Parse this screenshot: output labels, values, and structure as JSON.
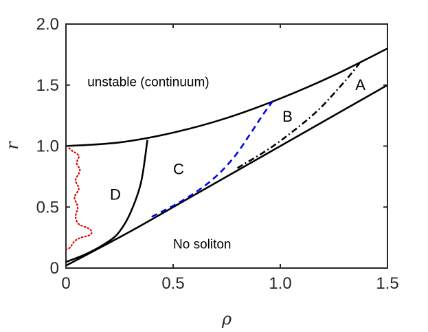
{
  "chart_data": {
    "type": "line",
    "xlabel": "ρ",
    "ylabel": "r",
    "xlim": [
      0,
      1.5
    ],
    "ylim": [
      0,
      2.0
    ],
    "x_ticks": [
      {
        "value": 0,
        "label": "0"
      },
      {
        "value": 0.5,
        "label": "0.5"
      },
      {
        "value": 1.0,
        "label": "1.0"
      },
      {
        "value": 1.5,
        "label": "1.5"
      }
    ],
    "y_ticks": [
      {
        "value": 0,
        "label": "0"
      },
      {
        "value": 0.5,
        "label": "0.5"
      },
      {
        "value": 1.0,
        "label": "1.0"
      },
      {
        "value": 1.5,
        "label": "1.5"
      },
      {
        "value": 2.0,
        "label": "2.0"
      }
    ],
    "grid": false,
    "series": [
      {
        "style": "solid",
        "color": "#000000",
        "x": [
          0,
          0.25,
          0.5,
          0.75,
          1.0,
          1.25,
          1.5
        ],
        "y": [
          1.0,
          1.03,
          1.11,
          1.23,
          1.39,
          1.58,
          1.8
        ]
      },
      {
        "style": "solid",
        "color": "#000000",
        "x": [
          0,
          0.1,
          0.2,
          0.25,
          0.3,
          0.35,
          0.38
        ],
        "y": [
          0.05,
          0.12,
          0.22,
          0.3,
          0.45,
          0.7,
          1.05
        ]
      },
      {
        "style": "solid",
        "color": "#000000",
        "x": [
          0,
          0.3,
          0.6,
          0.9,
          1.2,
          1.5
        ],
        "y": [
          0.02,
          0.3,
          0.6,
          0.9,
          1.2,
          1.5
        ]
      },
      {
        "style": "dashed",
        "color": "#0000ee",
        "x": [
          0.4,
          0.55,
          0.68,
          0.78,
          0.86,
          0.92,
          0.97
        ],
        "y": [
          0.42,
          0.56,
          0.72,
          0.9,
          1.1,
          1.26,
          1.38
        ]
      },
      {
        "style": "dashdot",
        "color": "#000000",
        "x": [
          0.8,
          0.95,
          1.08,
          1.18,
          1.26,
          1.32,
          1.37
        ],
        "y": [
          0.82,
          0.98,
          1.15,
          1.3,
          1.45,
          1.57,
          1.68
        ]
      },
      {
        "style": "dotted",
        "color": "#e00000",
        "x": [
          0,
          0.02,
          0.04,
          0.07,
          0.11,
          0.12,
          0.1,
          0.06,
          0.045,
          0.055,
          0.04,
          0.06,
          0.045,
          0.065,
          0.05,
          0.06,
          0.03,
          0.01
        ],
        "y": [
          0.15,
          0.17,
          0.22,
          0.25,
          0.27,
          0.3,
          0.33,
          0.36,
          0.42,
          0.5,
          0.58,
          0.65,
          0.72,
          0.8,
          0.86,
          0.92,
          0.96,
          0.99
        ]
      }
    ],
    "annotations": [
      {
        "text": "unstable (continuum)",
        "x": 0.1,
        "y": 1.49,
        "size": "small"
      },
      {
        "text": "A",
        "x": 1.35,
        "y": 1.46
      },
      {
        "text": "B",
        "x": 1.01,
        "y": 1.2
      },
      {
        "text": "C",
        "x": 0.5,
        "y": 0.77
      },
      {
        "text": "D",
        "x": 0.205,
        "y": 0.56
      },
      {
        "text": "No soliton",
        "x": 0.5,
        "y": 0.16,
        "size": "small"
      }
    ]
  }
}
